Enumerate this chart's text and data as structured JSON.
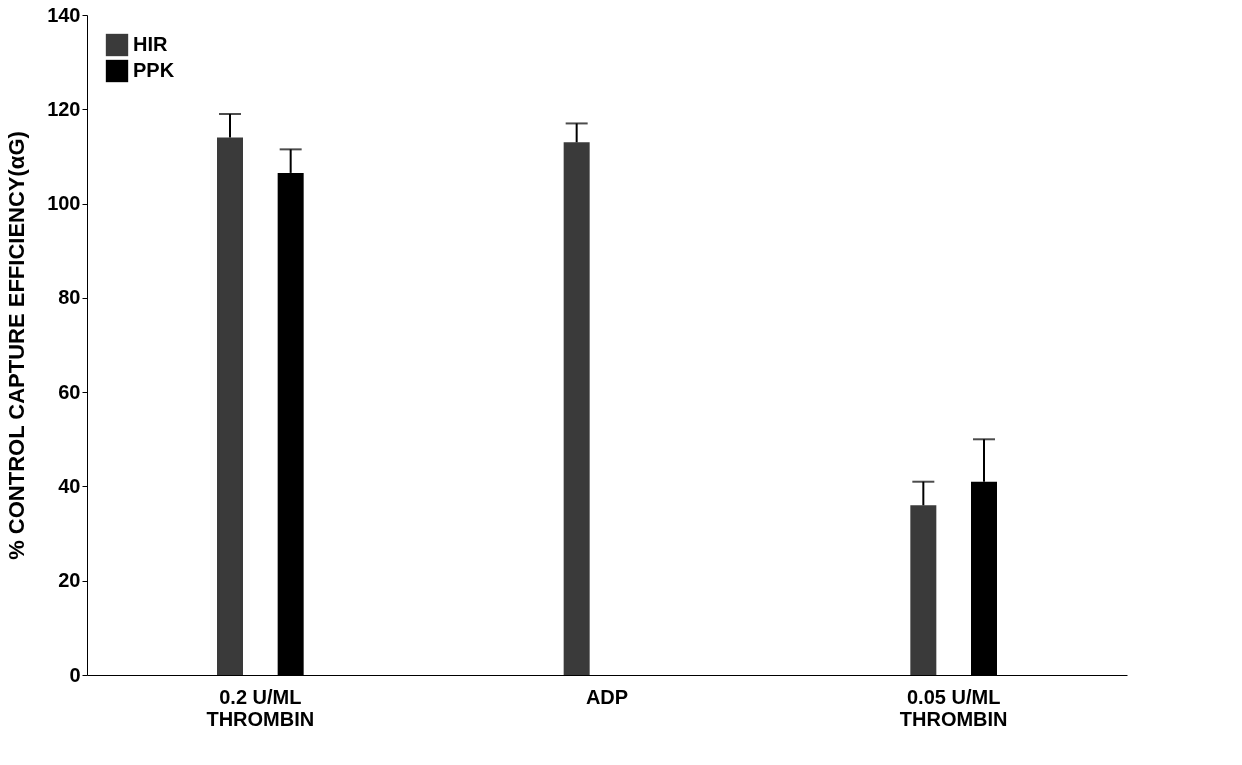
{
  "chart_data": {
    "type": "bar",
    "ylabel": "% CONTROL CAPTURE EFFICIENCY(αG)",
    "categories": [
      "0.2 U/ML\nTHROMBIN",
      "ADP",
      "0.05 U/ML\nTHROMBIN"
    ],
    "series": [
      {
        "name": "HIR",
        "color": "#3a3a3a",
        "values": [
          114,
          113,
          36
        ],
        "errors": [
          [
            114,
            119
          ],
          [
            113,
            117
          ],
          [
            36,
            41
          ]
        ]
      },
      {
        "name": "PPK",
        "color": "#000000",
        "values": [
          106.5,
          null,
          41
        ],
        "errors": [
          [
            106.5,
            111.5
          ],
          null,
          [
            41,
            50
          ]
        ]
      }
    ],
    "ylim": [
      0,
      140
    ],
    "yticks": [
      0,
      20,
      40,
      60,
      80,
      100,
      120,
      140
    ],
    "legend": "top left",
    "grid": false
  }
}
